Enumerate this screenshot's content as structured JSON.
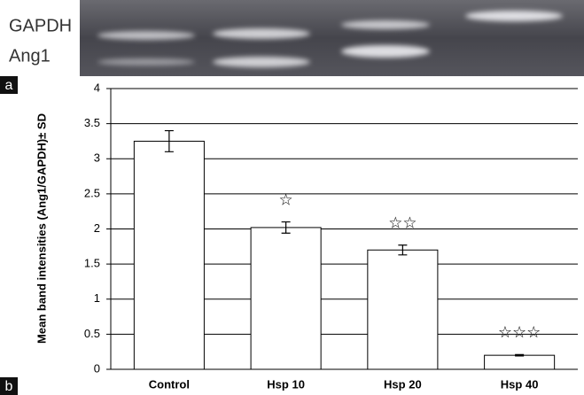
{
  "gel": {
    "labels": [
      "GAPDH",
      "Ang1"
    ]
  },
  "panel_labels": [
    "a",
    "b"
  ],
  "chart_data": {
    "type": "bar",
    "y_label": "Mean band intensities (Ang1/GAPDH)± SD",
    "categories": [
      "Control",
      "Hsp 10",
      "Hsp 20",
      "Hsp 40"
    ],
    "values": [
      3.25,
      2.02,
      1.7,
      0.2
    ],
    "errors": [
      0.15,
      0.08,
      0.07,
      0.01
    ],
    "bar_annotations": [
      null,
      "☆",
      "☆☆",
      "☆☆☆"
    ],
    "color": "#ffffff",
    "ylim": [
      0,
      4
    ],
    "yticks": [
      0,
      0.5,
      1,
      1.5,
      2,
      2.5,
      3,
      3.5,
      4
    ],
    "grid": true
  }
}
